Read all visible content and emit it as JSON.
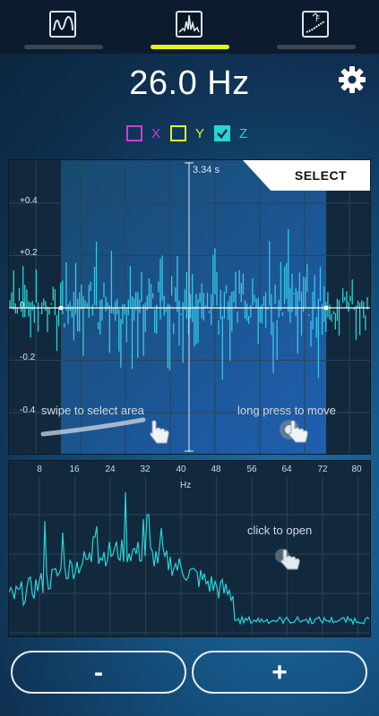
{
  "tabs": [
    {
      "name": "waveform-tab",
      "icon": "waveform-icon",
      "active": false
    },
    {
      "name": "spectrum-tab",
      "icon": "spectrum-icon",
      "active": true
    },
    {
      "name": "filter-tab",
      "icon": "filter-icon",
      "active": false
    }
  ],
  "reading": {
    "frequency": "26.0 Hz"
  },
  "settings": {
    "icon": "gear-icon"
  },
  "axes": [
    {
      "label": "X",
      "checked": false,
      "color": "#d23bd8"
    },
    {
      "label": "Y",
      "checked": false,
      "color": "#e6ef20"
    },
    {
      "label": "Z",
      "checked": true,
      "color": "#27d4d8"
    }
  ],
  "time_panel": {
    "select_label": "SELECT",
    "time_marker": "3.34 s",
    "y_ticks": [
      "+0.4",
      "+0.2",
      "0",
      "-0.2",
      "-0.4"
    ],
    "hint_left": "swipe to select area",
    "hint_right": "long press to move",
    "accent": "#27d4d8"
  },
  "spectrum_panel": {
    "x_ticks": [
      "8",
      "16",
      "24",
      "32",
      "40",
      "48",
      "56",
      "64",
      "72",
      "80"
    ],
    "unit": "Hz",
    "hint": "click to open",
    "accent": "#27d4d8"
  },
  "controls": {
    "minus_label": "-",
    "plus_label": "+"
  }
}
